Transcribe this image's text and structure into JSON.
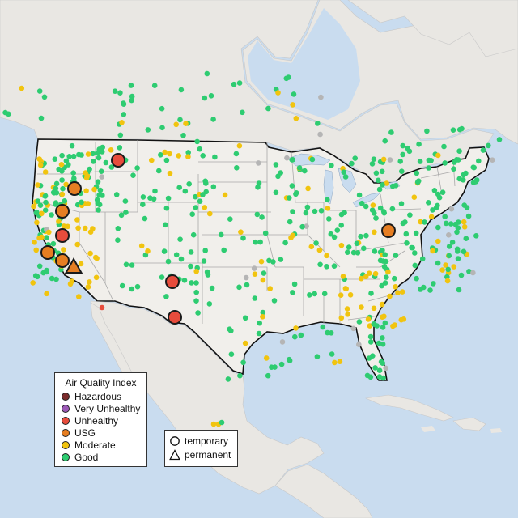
{
  "map": {
    "colors": {
      "water": "#c9dcef",
      "land": "#f1efeb",
      "land_other": "#e9e7e3",
      "state_border": "#a9a9a9",
      "country_border": "#111111",
      "marker_outline": "#1a1a1a"
    },
    "aqi_colors": {
      "Hazardous": "#7a2b2b",
      "Very Unhealthy": "#9b59b6",
      "Unhealthy": "#e74c3c",
      "USG": "#e67e22",
      "Moderate": "#f1c40f",
      "Good": "#2ecc71",
      "Unknown": "#b5b5b5"
    }
  },
  "legend_aqi": {
    "title": "Air Quality Index",
    "items": [
      {
        "label": "Hazardous",
        "color": "#7a2b2b"
      },
      {
        "label": "Very Unhealthy",
        "color": "#9b59b6"
      },
      {
        "label": "Unhealthy",
        "color": "#e74c3c"
      },
      {
        "label": "USG",
        "color": "#e67e22"
      },
      {
        "label": "Moderate",
        "color": "#f1c40f"
      },
      {
        "label": "Good",
        "color": "#2ecc71"
      }
    ]
  },
  "legend_type": {
    "items": [
      {
        "label": "temporary",
        "shape": "circle"
      },
      {
        "label": "permanent",
        "shape": "triangle"
      }
    ]
  }
}
